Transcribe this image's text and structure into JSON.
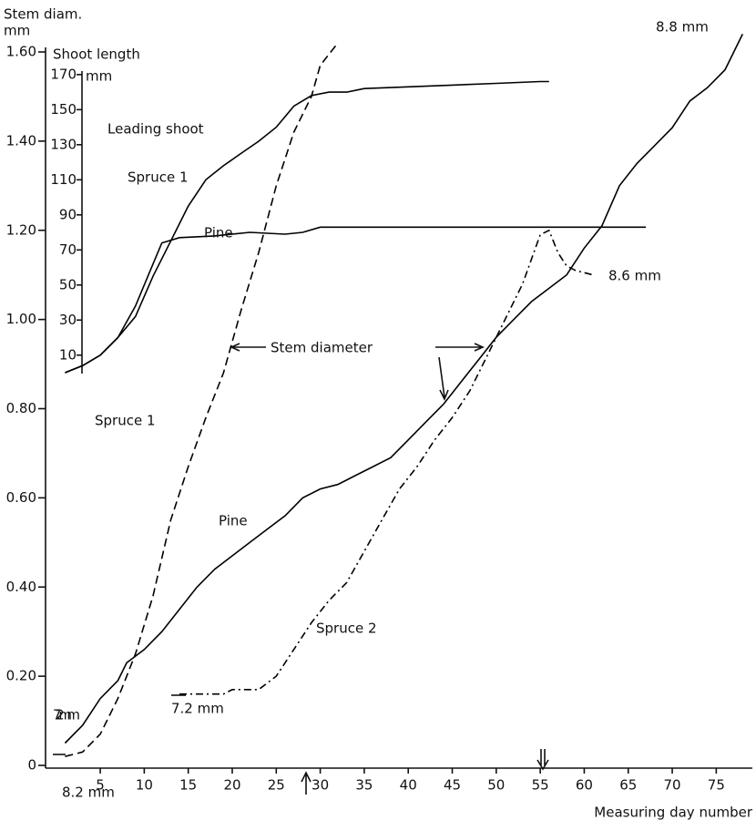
{
  "chart_data": {
    "type": "line",
    "x_label": "Measuring day number",
    "y_label": [
      "Stem diam.",
      "mm"
    ],
    "y2_label": [
      "Shoot length",
      "mm"
    ],
    "xlim": [
      -0.7,
      79
    ],
    "xticks": [
      5,
      10,
      15,
      20,
      25,
      30,
      35,
      40,
      45,
      50,
      55,
      60,
      65,
      70,
      75
    ],
    "ylim": [
      0,
      1.6
    ],
    "yticks": [
      0,
      {
        "value": 0.2,
        "label": "0.20"
      },
      {
        "value": 0.4,
        "label": "0.40"
      },
      {
        "value": 0.6,
        "label": "0.60"
      },
      {
        "value": 0.8,
        "label": "0.80"
      },
      {
        "value": 1.0,
        "label": "1.00"
      },
      {
        "value": 1.2,
        "label": "1.20"
      },
      {
        "value": 1.4,
        "label": "1.40"
      },
      {
        "value": 1.6,
        "label": "1.60"
      }
    ],
    "y2lim": [
      0,
      172
    ],
    "y2ticks": [
      10,
      30,
      50,
      70,
      90,
      110,
      130,
      150,
      170
    ],
    "grid": false,
    "series": [
      {
        "name": "Pine",
        "color": "#000000",
        "style": "solid",
        "axis": "y",
        "x": [
          1,
          3,
          5,
          7,
          8,
          10,
          12,
          14,
          16,
          18,
          20,
          22,
          24,
          26,
          28,
          30,
          32,
          34,
          36,
          38,
          40,
          42,
          44,
          46,
          48,
          50,
          52,
          54,
          56,
          58,
          60,
          62,
          64,
          66,
          68,
          70,
          72,
          74,
          76,
          78
        ],
        "values": [
          0.05,
          0.09,
          0.15,
          0.19,
          0.23,
          0.26,
          0.3,
          0.35,
          0.4,
          0.44,
          0.47,
          0.5,
          0.53,
          0.56,
          0.6,
          0.62,
          0.63,
          0.65,
          0.67,
          0.69,
          0.73,
          0.77,
          0.81,
          0.86,
          0.91,
          0.96,
          1.0,
          1.04,
          1.07,
          1.1,
          1.16,
          1.21,
          1.3,
          1.35,
          1.39,
          1.43,
          1.49,
          1.52,
          1.56,
          1.64
        ]
      },
      {
        "name": "Spruce 1",
        "color": "#000000",
        "style": "dashed",
        "axis": "y",
        "x": [
          1,
          3,
          5,
          7,
          9,
          11,
          13,
          15,
          17,
          19,
          21,
          23,
          25,
          27,
          29,
          30,
          32
        ],
        "values": [
          0.02,
          0.03,
          0.07,
          0.15,
          0.25,
          0.38,
          0.55,
          0.67,
          0.78,
          0.88,
          1.02,
          1.15,
          1.3,
          1.42,
          1.5,
          1.57,
          1.62
        ]
      },
      {
        "name": "Spruce 2",
        "color": "#000000",
        "style": "dash-dot",
        "axis": "y",
        "x": [
          14,
          17,
          19,
          20,
          23,
          25,
          27,
          29,
          31,
          33,
          35,
          37,
          39,
          41,
          43,
          45,
          47,
          49,
          51,
          53,
          55,
          56,
          57,
          58,
          59,
          61
        ],
        "values": [
          0.16,
          0.16,
          0.16,
          0.17,
          0.17,
          0.2,
          0.26,
          0.32,
          0.37,
          0.41,
          0.48,
          0.55,
          0.62,
          0.67,
          0.73,
          0.78,
          0.84,
          0.92,
          1.0,
          1.08,
          1.19,
          1.2,
          1.15,
          1.12,
          1.11,
          1.1
        ]
      },
      {
        "name": "Pine",
        "color": "#000000",
        "style": "solid",
        "axis": "y2",
        "x": [
          1,
          3,
          5,
          7,
          9,
          11,
          12,
          14,
          18,
          22,
          26,
          28,
          30,
          35,
          67
        ],
        "values": [
          0,
          4,
          10,
          20,
          38,
          62,
          74,
          77,
          78,
          80,
          79,
          80,
          83,
          83,
          83
        ]
      },
      {
        "name": "Spruce 1",
        "color": "#000000",
        "style": "solid",
        "axis": "y2",
        "x": [
          1,
          3,
          5,
          7,
          9,
          11,
          13,
          15,
          17,
          19,
          21,
          23,
          25,
          27,
          29,
          31,
          33,
          35,
          40,
          45,
          50,
          55,
          56
        ],
        "values": [
          0,
          4,
          10,
          20,
          32,
          55,
          75,
          95,
          110,
          118,
          125,
          132,
          140,
          152,
          158,
          160,
          160,
          162,
          163,
          164,
          165,
          166,
          166
        ]
      }
    ],
    "annotations": [
      "Leading shoot",
      "Stem diameter",
      "8.8 mm",
      "8.6 mm",
      "8.2 mm",
      "7.2 mm",
      "7.2 mm"
    ]
  }
}
